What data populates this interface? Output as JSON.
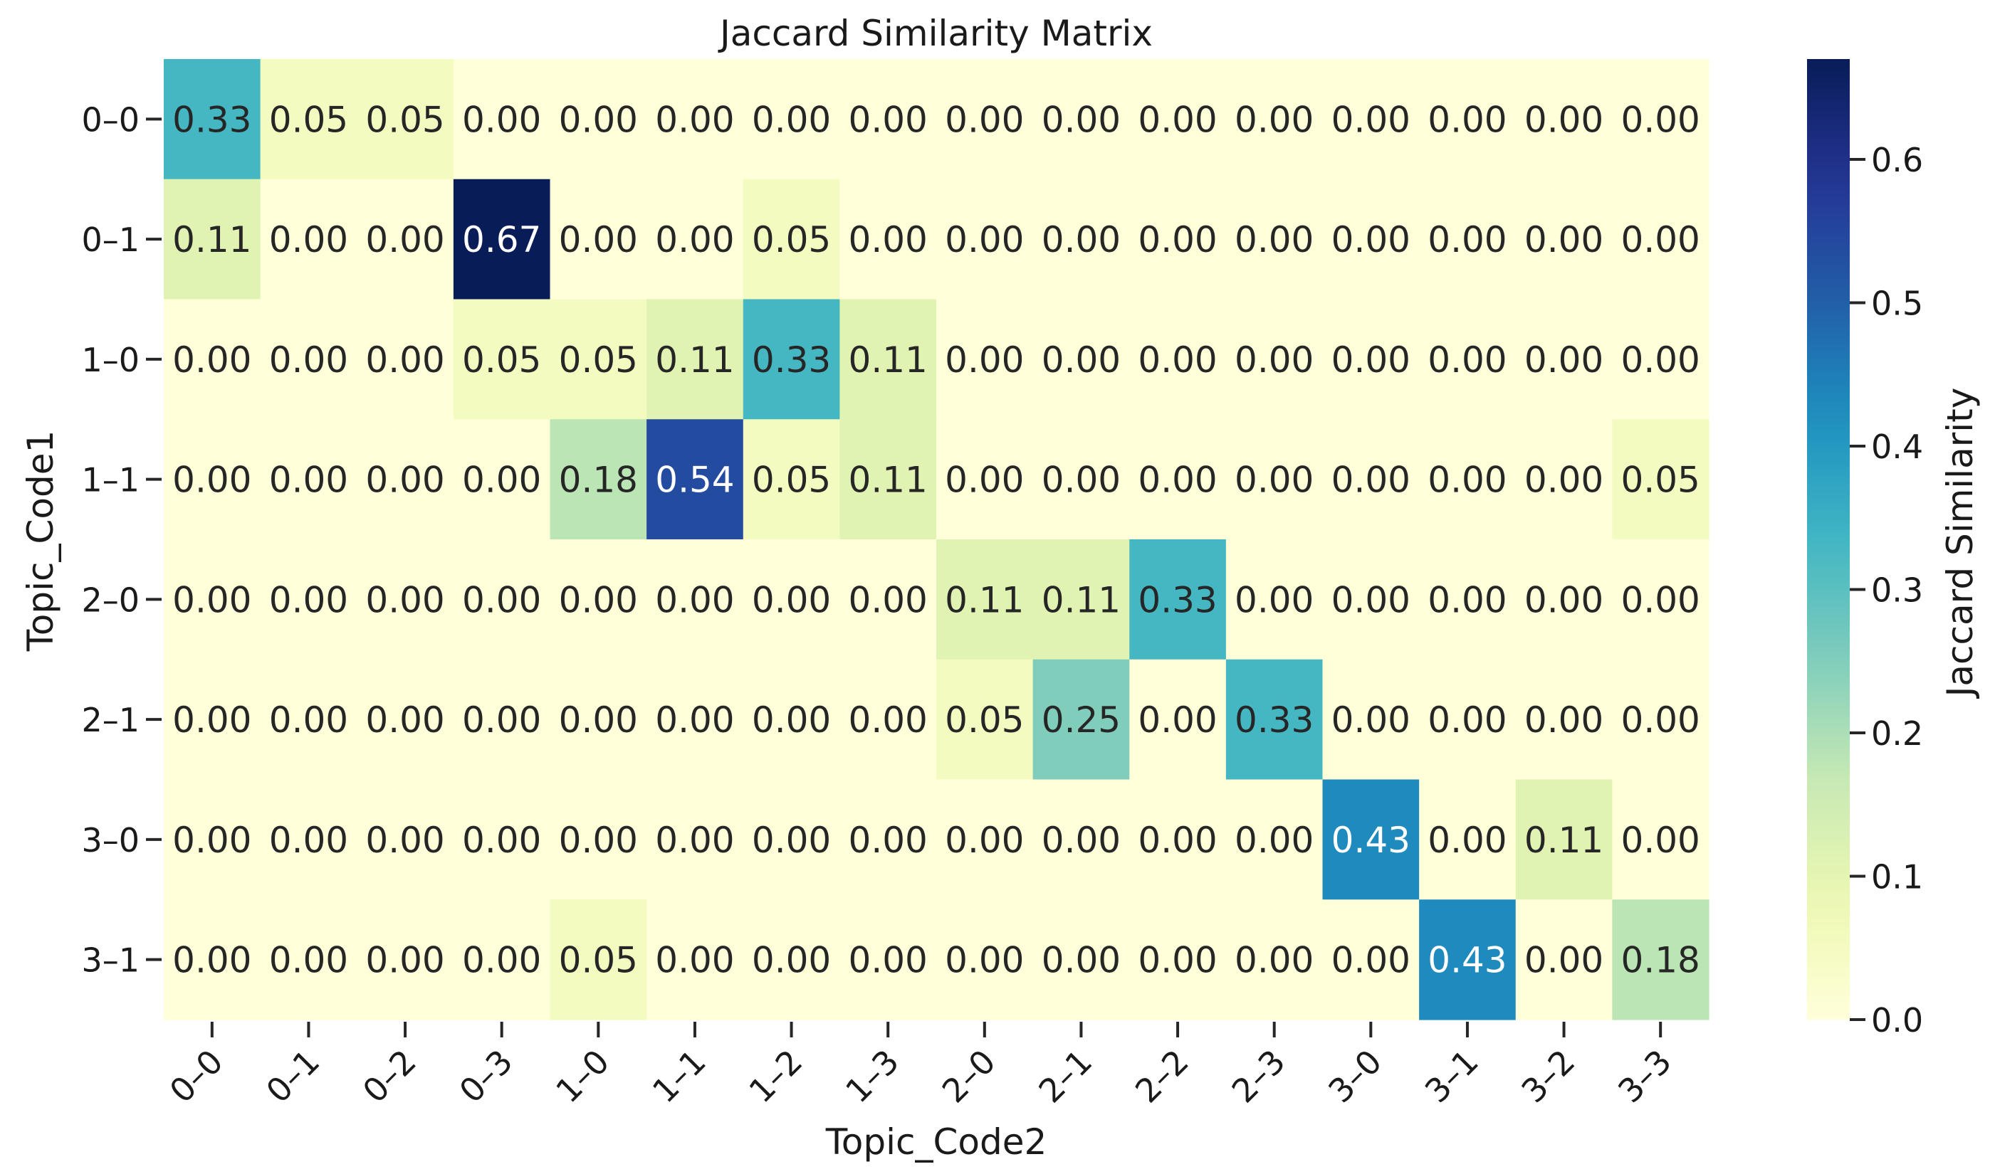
{
  "chart_data": {
    "type": "heatmap",
    "title": "Jaccard Similarity Matrix",
    "xlabel": "Topic_Code2",
    "ylabel": "Topic_Code1",
    "x_categories": [
      "0–0",
      "0–1",
      "0–2",
      "0–3",
      "1–0",
      "1–1",
      "1–2",
      "1–3",
      "2–0",
      "2–1",
      "2–2",
      "2–3",
      "3–0",
      "3–1",
      "3–2",
      "3–3"
    ],
    "y_categories": [
      "0–0",
      "0–1",
      "1–0",
      "1–1",
      "2–0",
      "2–1",
      "3–0",
      "3–1"
    ],
    "values": [
      [
        0.33,
        0.05,
        0.05,
        0.0,
        0.0,
        0.0,
        0.0,
        0.0,
        0.0,
        0.0,
        0.0,
        0.0,
        0.0,
        0.0,
        0.0,
        0.0
      ],
      [
        0.11,
        0.0,
        0.0,
        0.67,
        0.0,
        0.0,
        0.05,
        0.0,
        0.0,
        0.0,
        0.0,
        0.0,
        0.0,
        0.0,
        0.0,
        0.0
      ],
      [
        0.0,
        0.0,
        0.0,
        0.05,
        0.05,
        0.11,
        0.33,
        0.11,
        0.0,
        0.0,
        0.0,
        0.0,
        0.0,
        0.0,
        0.0,
        0.0
      ],
      [
        0.0,
        0.0,
        0.0,
        0.0,
        0.18,
        0.54,
        0.05,
        0.11,
        0.0,
        0.0,
        0.0,
        0.0,
        0.0,
        0.0,
        0.0,
        0.05
      ],
      [
        0.0,
        0.0,
        0.0,
        0.0,
        0.0,
        0.0,
        0.0,
        0.0,
        0.11,
        0.11,
        0.33,
        0.0,
        0.0,
        0.0,
        0.0,
        0.0
      ],
      [
        0.0,
        0.0,
        0.0,
        0.0,
        0.0,
        0.0,
        0.0,
        0.0,
        0.05,
        0.25,
        0.0,
        0.33,
        0.0,
        0.0,
        0.0,
        0.0
      ],
      [
        0.0,
        0.0,
        0.0,
        0.0,
        0.0,
        0.0,
        0.0,
        0.0,
        0.0,
        0.0,
        0.0,
        0.0,
        0.43,
        0.0,
        0.11,
        0.0
      ],
      [
        0.0,
        0.0,
        0.0,
        0.0,
        0.05,
        0.0,
        0.0,
        0.0,
        0.0,
        0.0,
        0.0,
        0.0,
        0.0,
        0.43,
        0.0,
        0.18
      ]
    ],
    "value_format": "0.00",
    "colorscale": "YlGnBu",
    "colorbar": {
      "label": "Jaccard Similarity",
      "ticks": [
        0.0,
        0.1,
        0.2,
        0.3,
        0.4,
        0.5,
        0.6
      ],
      "tick_labels": [
        "0.0",
        "0.1",
        "0.2",
        "0.3",
        "0.4",
        "0.5",
        "0.6"
      ],
      "range": [
        0.0,
        0.67
      ]
    },
    "grid": false,
    "legend": "none"
  }
}
